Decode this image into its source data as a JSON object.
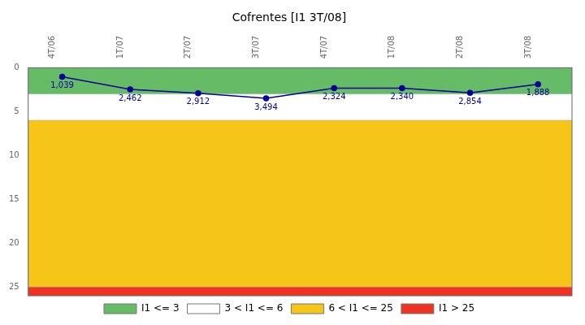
{
  "chart_data": {
    "type": "line",
    "title": "Cofrentes [I1 3T/08]",
    "categories": [
      "4T/06",
      "1T/07",
      "2T/07",
      "3T/07",
      "4T/07",
      "1T/08",
      "2T/08",
      "3T/08"
    ],
    "values": [
      1.039,
      2.462,
      2.912,
      3.494,
      2.324,
      2.34,
      2.854,
      1.888
    ],
    "value_labels": [
      "1,039",
      "2,462",
      "2,912",
      "3,494",
      "2,324",
      "2,340",
      "2,854",
      "1,888"
    ],
    "color": "#000099",
    "data_labels": true,
    "ylim": [
      26,
      0
    ],
    "yticks": [
      0,
      5,
      10,
      15,
      20,
      25
    ],
    "grid": false,
    "legend": "bottom",
    "zones": [
      {
        "label": "I1 <= 3",
        "from": 0,
        "to": 3,
        "color": "#66bb66"
      },
      {
        "label": "3 < I1 <= 6",
        "from": 3,
        "to": 6,
        "color": "#ffffff"
      },
      {
        "label": "6 < I1 <= 25",
        "from": 6,
        "to": 25,
        "color": "#f5c518"
      },
      {
        "label": "I1 > 25",
        "from": 25,
        "to": 27,
        "color": "#ee3322"
      }
    ]
  }
}
